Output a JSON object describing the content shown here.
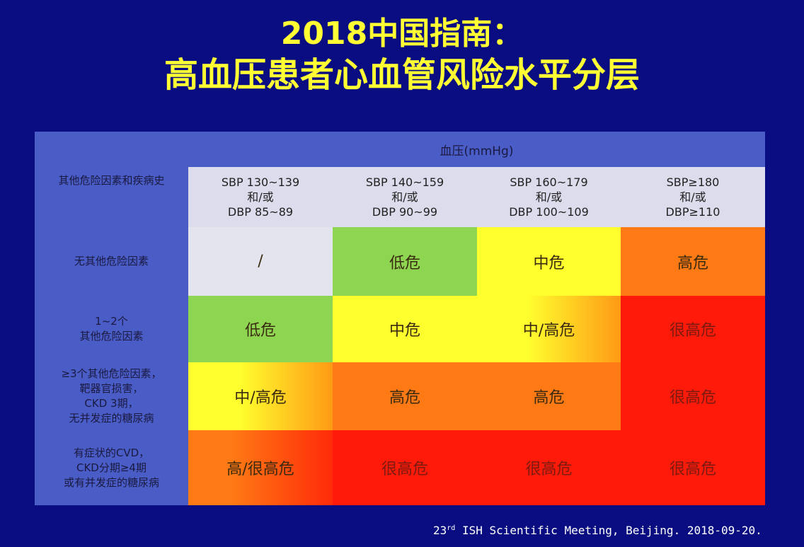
{
  "title": {
    "line1": "2018中国指南：",
    "line2": "高血压患者心血管风险水平分层"
  },
  "table": {
    "bp_header": "血压(mmHg)",
    "corner_label": "其他危险因素和疾病史",
    "columns": [
      "SBP 130~139\n和/或\nDBP 85~89",
      "SBP 140~159\n和/或\nDBP 90~99",
      "SBP 160~179\n和/或\nDBP 100~109",
      "SBP≥180\n和/或\nDBP≥110"
    ],
    "rows": [
      {
        "label": "无其他危险因素",
        "cells": [
          "/",
          "低危",
          "中危",
          "高危"
        ]
      },
      {
        "label": "1~2个\n其他危险因素",
        "cells": [
          "低危",
          "中危",
          "中/高危",
          "很高危"
        ]
      },
      {
        "label": "≥3个其他危险因素，\n靶器官损害，\nCKD 3期，\n无并发症的糖尿病",
        "cells": [
          "中/高危",
          "高危",
          "高危",
          "很高危"
        ]
      },
      {
        "label": "有症状的CVD，\nCKD分期≥4期\n或有并发症的糖尿病",
        "cells": [
          "高/很高危",
          "很高危",
          "很高危",
          "很高危"
        ]
      }
    ]
  },
  "footer": {
    "num": "23",
    "suffix": "rd",
    "text": " ISH Scientific Meeting, Beijing. 2018-09-20."
  },
  "colors": {
    "background": "#0a0d82",
    "title": "#ffff33",
    "header_band": "#4a5cc6",
    "none": "#e4e4ef",
    "low": "#8ed652",
    "medium": "#ffff2e",
    "high": "#ff7a14",
    "very_high": "#ff1a0a"
  }
}
